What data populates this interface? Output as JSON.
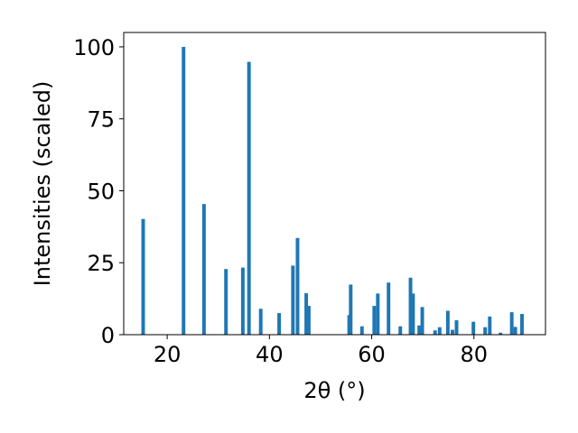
{
  "chart_data": {
    "type": "bar",
    "xlabel": "2θ (°)",
    "ylabel": "Intensities (scaled)",
    "xlim": [
      11.5,
      94.0
    ],
    "ylim": [
      0,
      105
    ],
    "x_ticks": [
      20,
      40,
      60,
      80
    ],
    "y_ticks": [
      0,
      25,
      50,
      75,
      100
    ],
    "bar_color": "#1f77b4",
    "bar_width": 0.7,
    "grid": false,
    "x": [
      15.3,
      23.2,
      27.2,
      31.5,
      34.8,
      36.0,
      38.3,
      41.9,
      44.6,
      45.5,
      47.2,
      47.7,
      55.6,
      55.9,
      58.1,
      60.5,
      61.2,
      63.3,
      65.6,
      67.6,
      68.1,
      69.3,
      69.9,
      72.4,
      73.3,
      74.9,
      75.8,
      76.6,
      79.9,
      82.2,
      83.1,
      85.2,
      87.4,
      88.1,
      89.4
    ],
    "values": [
      40.2,
      100.0,
      45.4,
      22.8,
      23.3,
      94.8,
      9.0,
      7.5,
      24.0,
      33.6,
      14.4,
      10.0,
      6.8,
      17.4,
      2.9,
      10.0,
      14.3,
      18.1,
      2.9,
      19.8,
      14.3,
      3.2,
      9.6,
      1.5,
      2.6,
      8.3,
      1.7,
      5.0,
      4.5,
      2.6,
      6.3,
      0.7,
      7.8,
      2.7,
      7.2
    ]
  }
}
